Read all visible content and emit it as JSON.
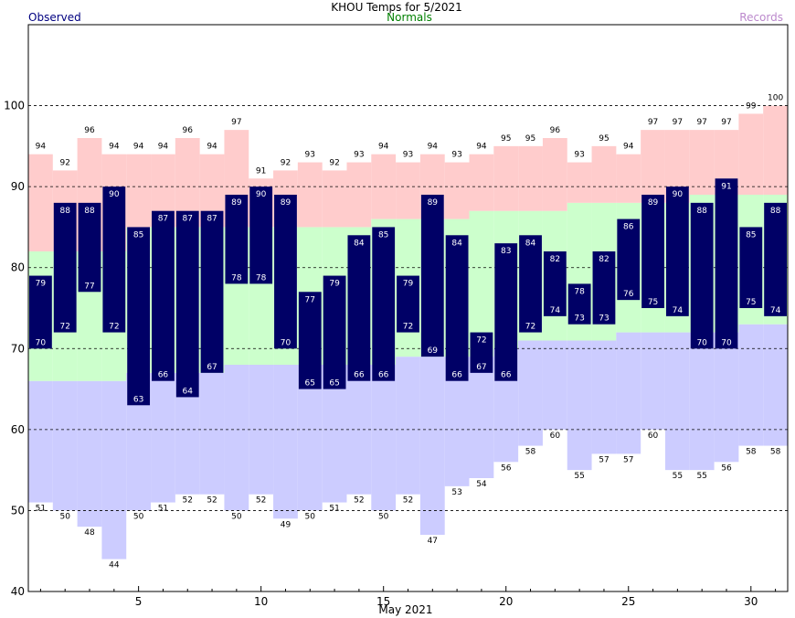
{
  "chart_data": {
    "type": "bar",
    "title": "KHOU Temps for 5/2021",
    "xlabel": "May 2021",
    "legend": {
      "observed": "Observed",
      "normals": "Normals",
      "records": "Records"
    },
    "colors": {
      "observed": "#000066",
      "observed_text": "#000080",
      "normals_text": "#008000",
      "records_text": "#bb88cc",
      "normal_band": "#ccffcc",
      "record_high_band": "#ffcccc",
      "record_low_band": "#ccccff"
    },
    "ylim": [
      40,
      110
    ],
    "yticks": [
      40,
      50,
      60,
      70,
      80,
      90,
      100
    ],
    "dashed_gridlines": [
      50,
      60,
      70,
      80,
      90,
      100
    ],
    "xlim": [
      0.5,
      31.5
    ],
    "xticks": [
      5,
      10,
      15,
      20,
      25,
      30
    ],
    "days": [
      1,
      2,
      3,
      4,
      5,
      6,
      7,
      8,
      9,
      10,
      11,
      12,
      13,
      14,
      15,
      16,
      17,
      18,
      19,
      20,
      21,
      22,
      23,
      24,
      25,
      26,
      27,
      28,
      29,
      30,
      31
    ],
    "observed_high": [
      79,
      88,
      88,
      90,
      85,
      87,
      87,
      87,
      89,
      90,
      89,
      77,
      79,
      84,
      85,
      79,
      89,
      84,
      72,
      83,
      84,
      82,
      78,
      82,
      86,
      89,
      90,
      88,
      91,
      85,
      88
    ],
    "observed_low": [
      70,
      72,
      77,
      72,
      63,
      66,
      64,
      67,
      78,
      78,
      70,
      65,
      65,
      66,
      66,
      72,
      69,
      66,
      67,
      66,
      72,
      74,
      73,
      73,
      76,
      75,
      74,
      70,
      70,
      75,
      74
    ],
    "normal_high": [
      82,
      82,
      82,
      82,
      85,
      85,
      85,
      85,
      85,
      85,
      85,
      85,
      85,
      85,
      86,
      86,
      86,
      86,
      87,
      87,
      87,
      87,
      88,
      88,
      88,
      88,
      88,
      89,
      89,
      89,
      89
    ],
    "normal_low": [
      66,
      66,
      66,
      66,
      67,
      67,
      67,
      67,
      68,
      68,
      68,
      68,
      68,
      68,
      68,
      69,
      69,
      69,
      69,
      70,
      71,
      71,
      71,
      71,
      72,
      72,
      72,
      72,
      72,
      73,
      73
    ],
    "record_high": [
      94,
      92,
      96,
      94,
      94,
      94,
      96,
      94,
      97,
      91,
      92,
      93,
      92,
      93,
      94,
      93,
      94,
      93,
      94,
      95,
      95,
      96,
      93,
      95,
      94,
      97,
      97,
      97,
      97,
      99,
      100
    ],
    "record_low": [
      51,
      50,
      48,
      44,
      50,
      51,
      52,
      52,
      50,
      52,
      49,
      50,
      51,
      52,
      50,
      52,
      47,
      53,
      54,
      56,
      58,
      60,
      55,
      57,
      57,
      60,
      55,
      55,
      56,
      58,
      58
    ]
  }
}
